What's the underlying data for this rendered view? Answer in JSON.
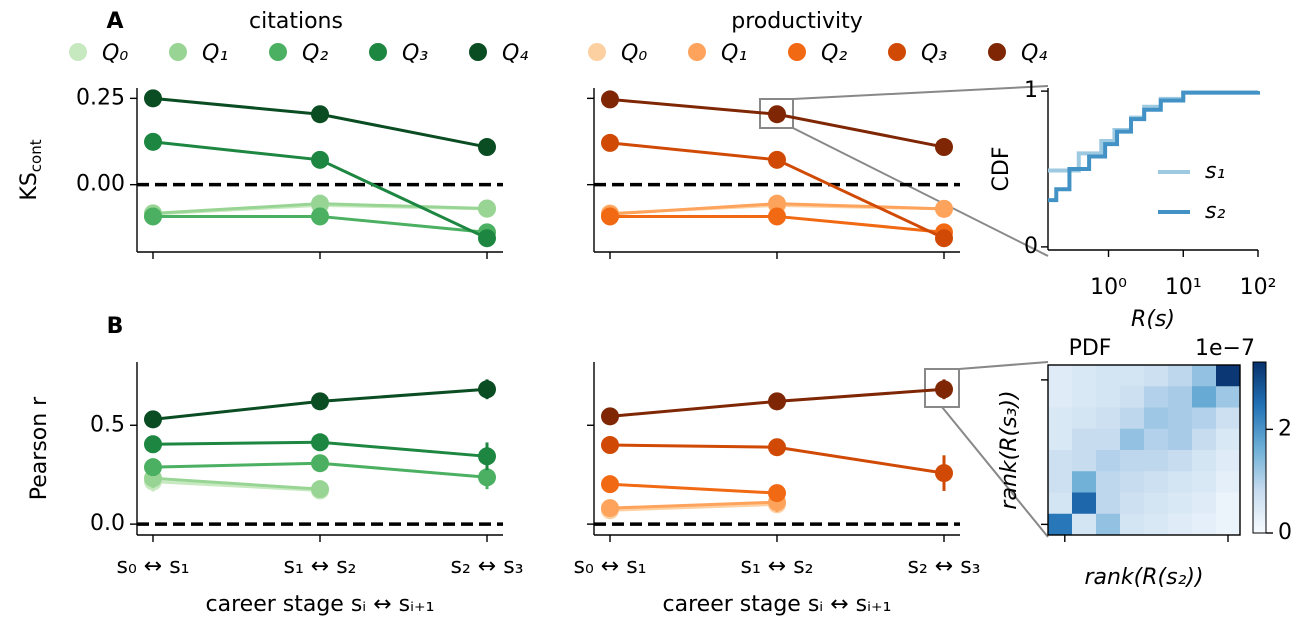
{
  "chart_data": [
    {
      "type": "line",
      "panel_label": "A",
      "legend_title": "citations",
      "legend": true,
      "ylabel_main": "KS",
      "ylabel_sub": "cont",
      "categories": [
        null,
        null,
        null
      ],
      "ylim": [
        -0.195,
        0.28
      ],
      "yticks": [
        {
          "value": 0.25,
          "label": "0.25"
        },
        {
          "value": 0,
          "label": "0.00"
        }
      ],
      "ytick_labels": true,
      "hline": 0,
      "series": [
        {
          "name": "Q₀",
          "color": "#c7e9c0",
          "values": [
            -0.085,
            -0.06,
            -0.07
          ]
        },
        {
          "name": "Q₁",
          "color": "#98d594",
          "values": [
            -0.083,
            -0.055,
            -0.069
          ]
        },
        {
          "name": "Q₂",
          "color": "#4bb062",
          "values": [
            -0.092,
            -0.092,
            -0.138
          ]
        },
        {
          "name": "Q₃",
          "color": "#1d8641",
          "values": [
            0.124,
            0.072,
            -0.155
          ]
        },
        {
          "name": "Q₄",
          "color": "#0b4d23",
          "values": [
            0.25,
            0.204,
            0.109
          ]
        }
      ]
    },
    {
      "type": "line",
      "legend_title": "productivity",
      "legend": true,
      "categories": [
        null,
        null,
        null
      ],
      "ylim": [
        -0.195,
        0.28
      ],
      "yticks": [
        0.25,
        0
      ],
      "ytick_labels": false,
      "hline": 0,
      "series": [
        {
          "name": "Q₀",
          "color": "#fdd0a2",
          "values": [
            -0.083,
            -0.06,
            -0.07
          ]
        },
        {
          "name": "Q₁",
          "color": "#fda35c",
          "values": [
            -0.085,
            -0.055,
            -0.07
          ]
        },
        {
          "name": "Q₂",
          "color": "#f16913",
          "values": [
            -0.092,
            -0.092,
            -0.138
          ]
        },
        {
          "name": "Q₃",
          "color": "#d04a05",
          "values": [
            0.121,
            0.072,
            -0.155
          ]
        },
        {
          "name": "Q₄",
          "color": "#7f2704",
          "values": [
            0.247,
            0.204,
            0.109
          ]
        }
      ]
    },
    {
      "type": "line",
      "panel_label": "B",
      "ylabel_main": "Pearson r",
      "xlabel": "career stage sᵢ ↔ sᵢ₊₁",
      "categories": [
        "s₀ ↔ s₁",
        "s₁ ↔ s₂",
        "s₂ ↔ s₃"
      ],
      "ylim": [
        -0.055,
        0.82
      ],
      "yticks": [
        {
          "value": 0,
          "label": "0.0"
        },
        0.5
      ],
      "ytick_labels": true,
      "hline": 0,
      "series": [
        {
          "color": "#c7e9c0",
          "values": [
            0.215,
            0.17,
            null
          ],
          "errors": [
            0.05,
            0.04,
            null
          ]
        },
        {
          "color": "#98d594",
          "values": [
            0.232,
            0.177,
            null
          ],
          "errors": [
            0.05,
            0.04,
            null
          ]
        },
        {
          "color": "#4bb062",
          "values": [
            0.288,
            0.308,
            0.237
          ],
          "errors": [
            0.03,
            0.04,
            0.06
          ]
        },
        {
          "color": "#1d8641",
          "values": [
            0.404,
            0.414,
            0.343
          ],
          "errors": [
            0.02,
            0.02,
            0.07
          ]
        },
        {
          "color": "#0b4d23",
          "values": [
            0.53,
            0.621,
            0.682
          ],
          "errors": [
            0.03,
            0.04,
            0.05
          ]
        }
      ]
    },
    {
      "type": "line",
      "xlabel": "career stage sᵢ ↔ sᵢ₊₁",
      "categories": [
        "s₀ ↔ s₁",
        "s₁ ↔ s₂",
        "s₂ ↔ s₃"
      ],
      "ylim": [
        -0.055,
        0.82
      ],
      "yticks": [
        0,
        0.5
      ],
      "ytick_labels": false,
      "hline": 0,
      "series": [
        {
          "color": "#fdd0a2",
          "values": [
            0.07,
            0.1,
            null
          ],
          "errors": [
            0.02,
            0.04,
            null
          ]
        },
        {
          "color": "#fda35c",
          "values": [
            0.081,
            0.111,
            null
          ],
          "errors": [
            0.02,
            0.05,
            null
          ]
        },
        {
          "color": "#f16913",
          "values": [
            0.202,
            0.157,
            null
          ],
          "errors": [
            0.02,
            0.04,
            null
          ]
        },
        {
          "color": "#d04a05",
          "values": [
            0.4,
            0.389,
            0.258
          ],
          "errors": [
            0.02,
            0.02,
            0.09
          ]
        },
        {
          "color": "#7f2704",
          "values": [
            0.545,
            0.621,
            0.682
          ],
          "errors": [
            0.03,
            0.03,
            0.05
          ]
        }
      ]
    },
    {
      "type": "step",
      "ylabel": "CDF",
      "xlabel": "R(s)",
      "log_x": true,
      "xlim": [
        0.155,
        100
      ],
      "xticks": [
        {
          "value": 1,
          "label": "10⁰"
        },
        {
          "value": 10,
          "label": "10¹"
        },
        {
          "value": 100,
          "label": "10²"
        }
      ],
      "ylim": [
        -0.02,
        1.02
      ],
      "yticks": [
        0,
        1
      ],
      "series": [
        {
          "name": "s₁",
          "color": "#9ecae1",
          "x": [
            0.155,
            0.4,
            0.8,
            1.2,
            2,
            3,
            5,
            10,
            100
          ],
          "values": [
            0.49,
            0.6,
            0.68,
            0.75,
            0.83,
            0.9,
            0.95,
            0.99,
            1
          ]
        },
        {
          "name": "s₂",
          "color": "#4292c6",
          "x": [
            0.155,
            0.2,
            0.3,
            0.55,
            0.9,
            1.3,
            2,
            3,
            5,
            10,
            100
          ],
          "values": [
            0.3,
            0.37,
            0.5,
            0.58,
            0.66,
            0.74,
            0.82,
            0.88,
            0.94,
            0.99,
            1
          ]
        }
      ]
    },
    {
      "type": "heatmap",
      "title": "PDF",
      "colorbar_label": "1e−7",
      "ylabel": "rank(R(s₃))",
      "xlabel": "rank(R(s₂))",
      "clim": [
        0,
        3.3
      ],
      "colorbar_ticks": [
        0,
        2
      ],
      "colormap": [
        "#f7fbff",
        "#c6dbef",
        "#6baed6",
        "#2171b5",
        "#08306b"
      ],
      "values": [
        [
          0.4,
          0.5,
          0.6,
          0.6,
          0.7,
          0.9,
          1.3,
          3.2
        ],
        [
          0.4,
          0.5,
          0.6,
          0.7,
          1.0,
          1.1,
          1.7,
          1.2
        ],
        [
          0.5,
          0.6,
          0.7,
          0.9,
          1.2,
          1.1,
          1.0,
          0.7
        ],
        [
          0.5,
          0.8,
          0.8,
          1.3,
          1.0,
          1.1,
          0.8,
          0.5
        ],
        [
          0.7,
          0.8,
          1.0,
          0.9,
          0.9,
          0.8,
          0.6,
          0.4
        ],
        [
          0.7,
          1.6,
          0.9,
          0.8,
          0.7,
          0.6,
          0.5,
          0.3
        ],
        [
          0.6,
          2.6,
          0.9,
          0.7,
          0.6,
          0.5,
          0.4,
          0.2
        ],
        [
          2.4,
          0.6,
          1.3,
          0.6,
          0.5,
          0.4,
          0.3,
          0.2
        ]
      ]
    }
  ]
}
